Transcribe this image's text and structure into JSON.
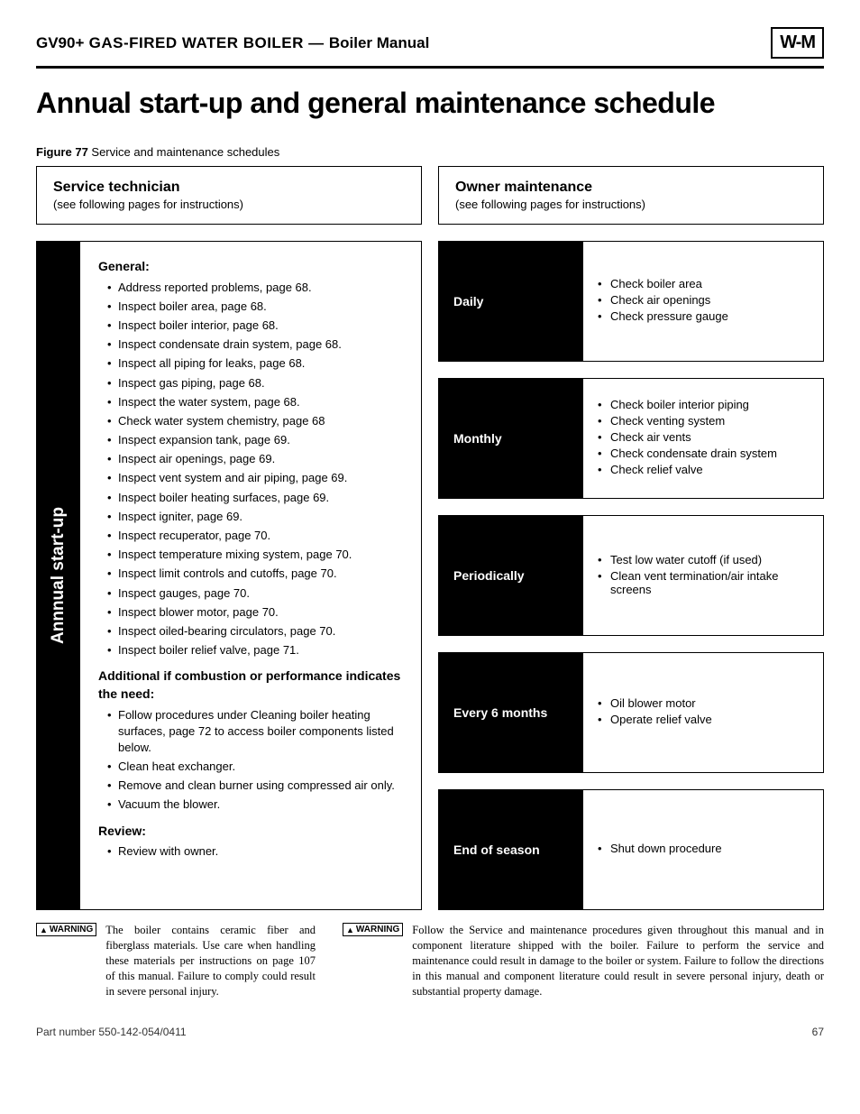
{
  "header": {
    "model": "GV90+",
    "desc": " GAS-FIRED WATER BOILER — ",
    "manual": "Boiler Manual",
    "logo": "W-M"
  },
  "title": "Annual start-up and general maintenance schedule",
  "figure": {
    "label": "Figure 77",
    "caption": "  Service and maintenance schedules"
  },
  "service": {
    "title": "Service technician",
    "sub": "(see following pages for instructions)",
    "sidebar": "Annnual start-up",
    "sections": [
      {
        "heading": "General:",
        "items": [
          "Address reported problems, page 68.",
          "Inspect boiler area, page 68.",
          "Inspect boiler interior, page 68.",
          "Inspect condensate drain system, page 68.",
          "Inspect all piping for leaks, page 68.",
          "Inspect gas piping, page 68.",
          "Inspect the water system, page 68.",
          "Check water system chemistry, page 68",
          "Inspect expansion tank, page 69.",
          "Inspect air openings, page 69.",
          "Inspect vent system and air piping, page 69.",
          "Inspect boiler heating surfaces, page 69.",
          "Inspect igniter, page 69.",
          "Inspect recuperator, page 70.",
          "Inspect temperature mixing system, page 70.",
          "Inspect limit controls and cutoffs, page 70.",
          "Inspect gauges, page 70.",
          "Inspect blower motor, page 70.",
          "Inspect oiled-bearing circulators, page 70.",
          "Inspect boiler relief valve, page 71."
        ]
      },
      {
        "heading": "Additional if combustion or performance indicates the need:",
        "items": [
          "Follow procedures under Cleaning boiler heating surfaces, page 72 to access boiler components listed below.",
          "Clean heat exchanger.",
          "Remove and clean burner using compressed air only.",
          "Vacuum the blower."
        ]
      },
      {
        "heading": "Review:",
        "items": [
          "Review with owner."
        ]
      }
    ]
  },
  "owner": {
    "title": "Owner maintenance",
    "sub": "(see following pages for instructions)",
    "blocks": [
      {
        "label": "Daily",
        "items": [
          "Check boiler area",
          "Check air openings",
          "Check pressure gauge"
        ]
      },
      {
        "label": "Monthly",
        "items": [
          "Check boiler interior piping",
          "Check venting system",
          "Check air vents",
          "Check condensate drain system",
          "Check relief valve"
        ]
      },
      {
        "label": "Periodically",
        "items": [
          "Test low water cutoff (if used)",
          "Clean vent termination/air intake screens"
        ]
      },
      {
        "label": "Every 6 months",
        "items": [
          "Oil blower motor",
          "Operate relief valve"
        ]
      },
      {
        "label": "End of season",
        "items": [
          "Shut down procedure"
        ]
      }
    ]
  },
  "warnings": [
    "The boiler contains ceramic fiber and fiberglass materials. Use care when handling these materials per instructions on page 107 of this manual. Failure to comply could result in severe personal injury.",
    "Follow the Service and maintenance procedures given throughout this manual and in component literature shipped with the boiler. Failure to perform the service and maintenance could result in damage to the boiler or system. Failure to follow the directions in this manual and component literature could result in severe personal injury, death or substantial property damage."
  ],
  "warning_label": "WARNING",
  "footer": {
    "part": "Part number 550-142-054/0411",
    "page": "67"
  }
}
